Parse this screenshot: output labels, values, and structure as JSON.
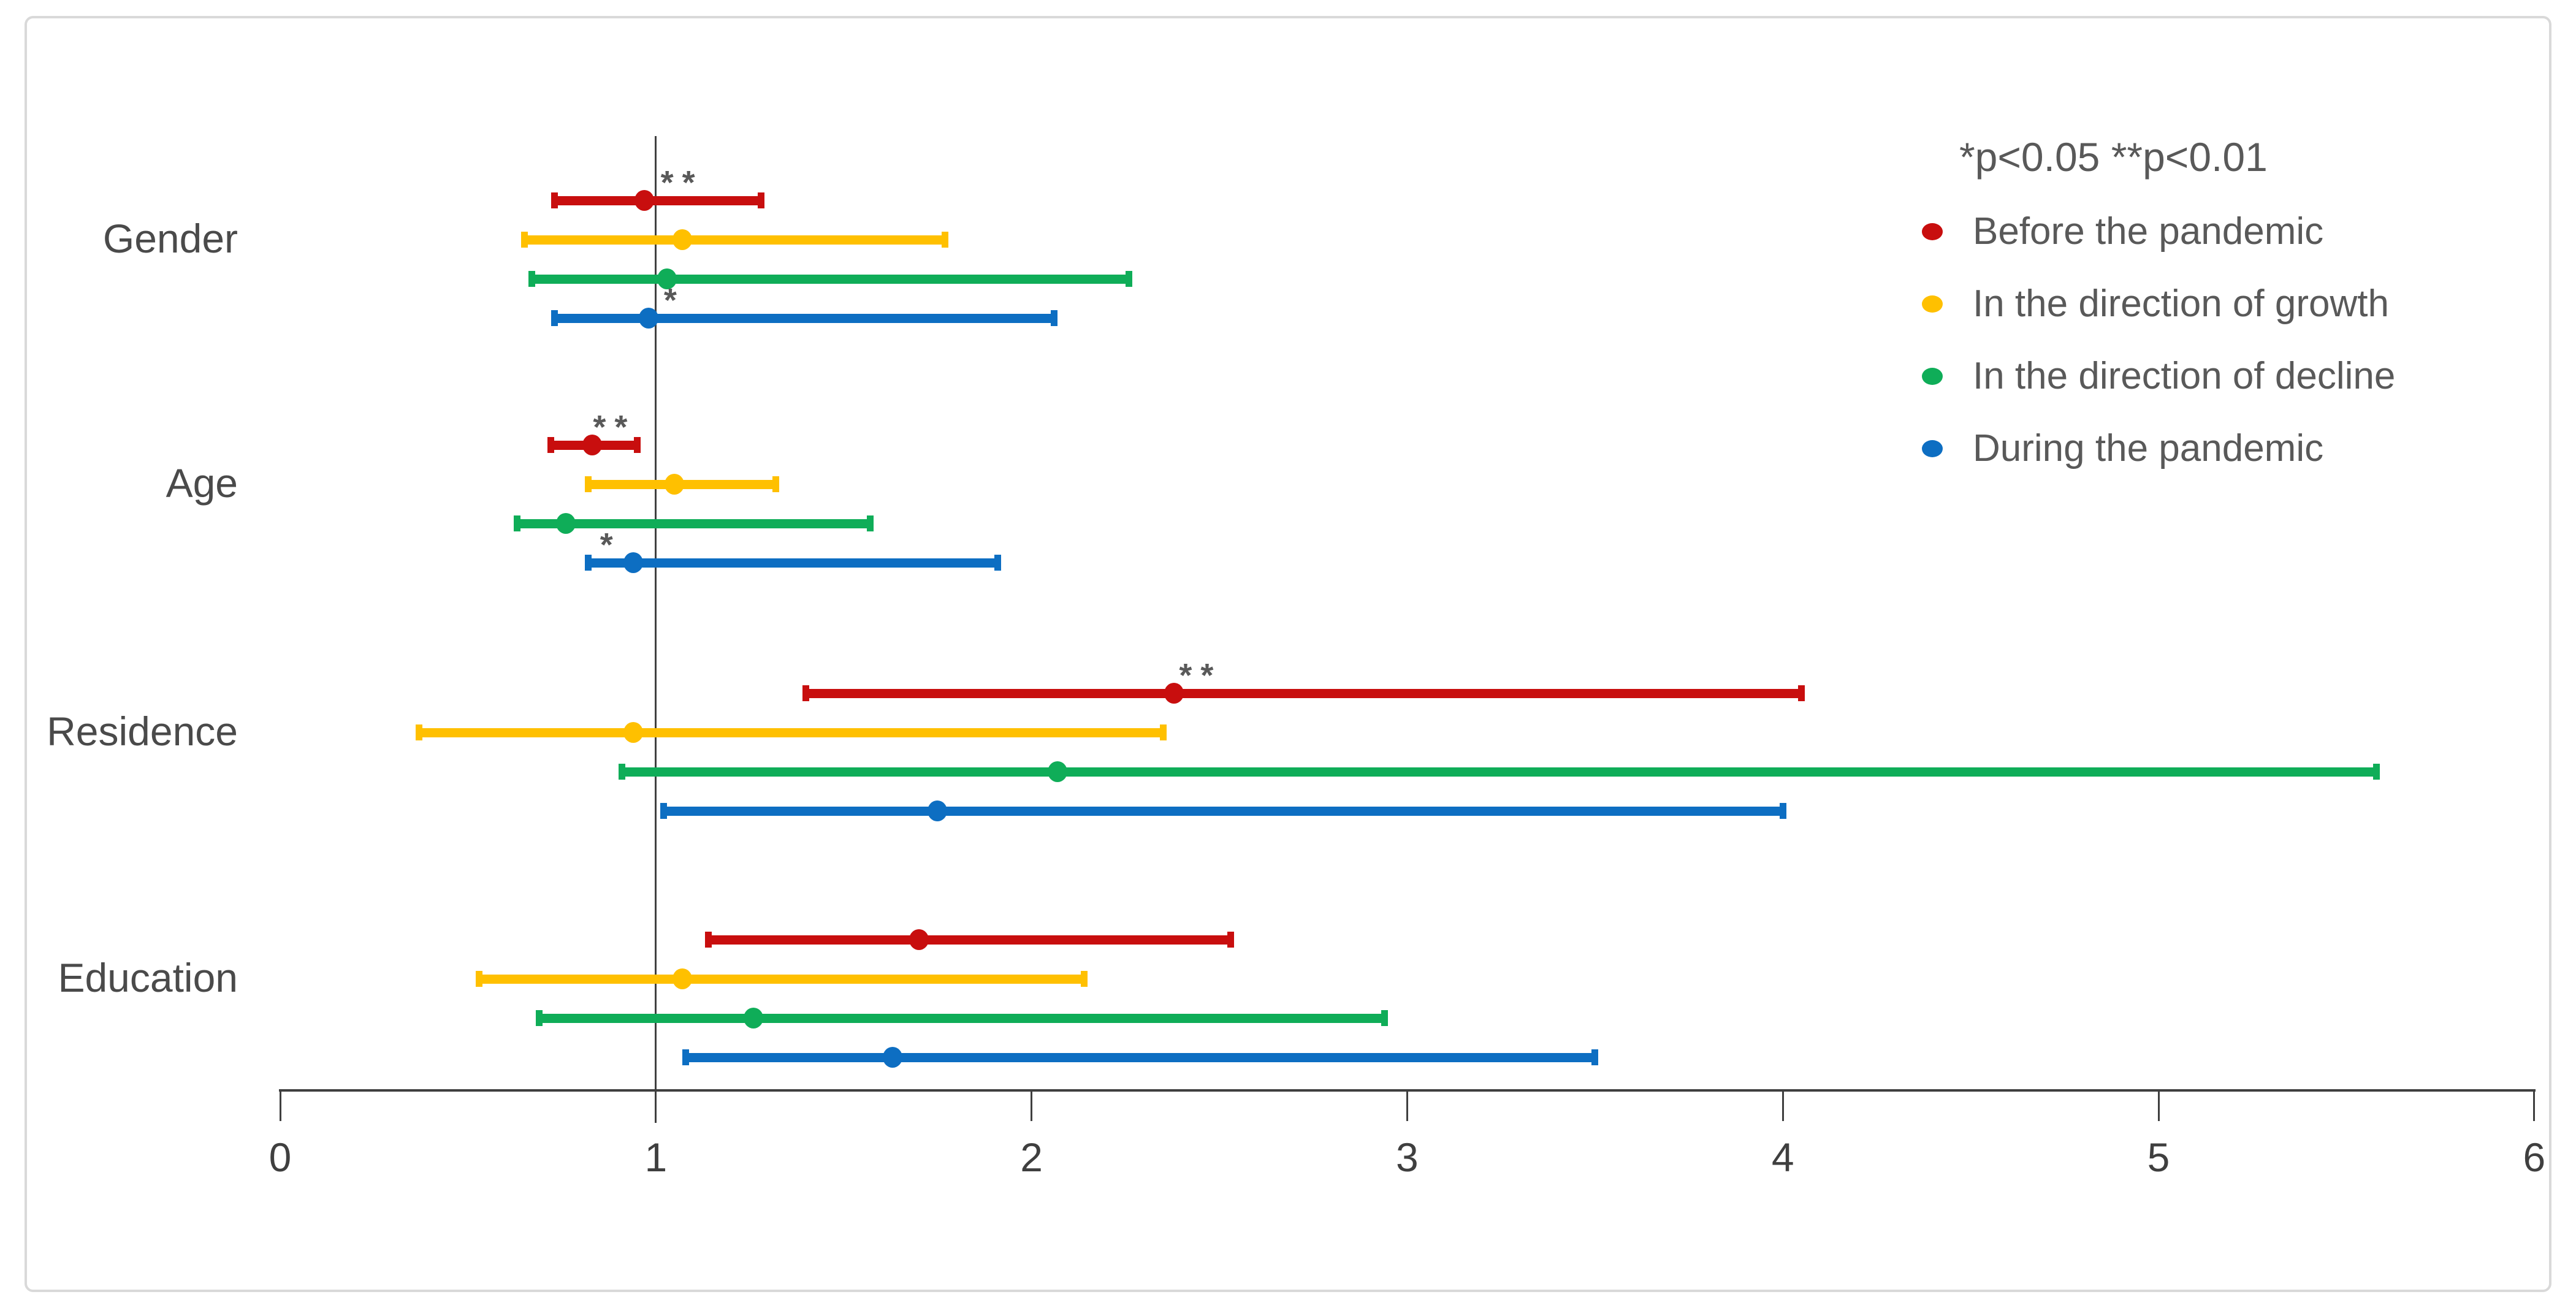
{
  "chart_data": {
    "type": "forest-errorbar",
    "title": "",
    "xlabel": "",
    "ylabel": "",
    "xlim": [
      0,
      6
    ],
    "x_ticks": [
      0,
      1,
      2,
      3,
      4,
      5,
      6
    ],
    "reference_line_x": 1,
    "grid": false,
    "legend": {
      "position": "top-right",
      "note": "*p<0.05  **p<0.01",
      "items": [
        {
          "label": "Before the pandemic",
          "color": "#C80E0E"
        },
        {
          "label": "In the direction of growth",
          "color": "#FFC000"
        },
        {
          "label": "In the direction of decline",
          "color": "#0FAD58"
        },
        {
          "label": "During the pandemic",
          "color": "#0D6EC2"
        }
      ]
    },
    "categories": [
      "Gender",
      "Age",
      "Residence",
      "Education"
    ],
    "groups": [
      {
        "category": "Gender",
        "rows": [
          {
            "series": "Before the pandemic",
            "ci_low": 0.73,
            "or": 0.97,
            "ci_high": 1.28,
            "sig": "**",
            "sig_x": 1.07
          },
          {
            "series": "In the direction of growth",
            "ci_low": 0.65,
            "or": 1.07,
            "ci_high": 1.77,
            "sig": "",
            "sig_x": null
          },
          {
            "series": "In the direction of decline",
            "ci_low": 0.67,
            "or": 1.03,
            "ci_high": 2.26,
            "sig": "",
            "sig_x": null
          },
          {
            "series": "During the pandemic",
            "ci_low": 0.73,
            "or": 0.98,
            "ci_high": 2.06,
            "sig": "*",
            "sig_x": 1.05
          }
        ]
      },
      {
        "category": "Age",
        "rows": [
          {
            "series": "Before the pandemic",
            "ci_low": 0.72,
            "or": 0.83,
            "ci_high": 0.95,
            "sig": "**",
            "sig_x": 0.89
          },
          {
            "series": "In the direction of growth",
            "ci_low": 0.82,
            "or": 1.05,
            "ci_high": 1.32,
            "sig": "",
            "sig_x": null
          },
          {
            "series": "In the direction of decline",
            "ci_low": 0.63,
            "or": 0.76,
            "ci_high": 1.57,
            "sig": "",
            "sig_x": null
          },
          {
            "series": "During the pandemic",
            "ci_low": 0.82,
            "or": 0.94,
            "ci_high": 1.91,
            "sig": "*",
            "sig_x": 0.88
          }
        ]
      },
      {
        "category": "Residence",
        "rows": [
          {
            "series": "Before the pandemic",
            "ci_low": 1.4,
            "or": 2.38,
            "ci_high": 4.05,
            "sig": "**",
            "sig_x": 2.45
          },
          {
            "series": "In the direction of growth",
            "ci_low": 0.37,
            "or": 0.94,
            "ci_high": 2.35,
            "sig": "",
            "sig_x": null
          },
          {
            "series": "In the direction of decline",
            "ci_low": 0.91,
            "or": 2.07,
            "ci_high": 5.58,
            "sig": "",
            "sig_x": null
          },
          {
            "series": "During the pandemic",
            "ci_low": 1.02,
            "or": 1.75,
            "ci_high": 4.0,
            "sig": "",
            "sig_x": null
          }
        ]
      },
      {
        "category": "Education",
        "rows": [
          {
            "series": "Before the pandemic",
            "ci_low": 1.14,
            "or": 1.7,
            "ci_high": 2.53,
            "sig": "",
            "sig_x": null
          },
          {
            "series": "In the direction of growth",
            "ci_low": 0.53,
            "or": 1.07,
            "ci_high": 2.14,
            "sig": "",
            "sig_x": null
          },
          {
            "series": "In the direction of decline",
            "ci_low": 0.69,
            "or": 1.26,
            "ci_high": 2.94,
            "sig": "",
            "sig_x": null
          },
          {
            "series": "During the pandemic",
            "ci_low": 1.08,
            "or": 1.63,
            "ci_high": 3.5,
            "sig": "",
            "sig_x": null
          }
        ]
      }
    ],
    "ui_colors": {
      "axis": "#3F3F3F",
      "reference_line": "#404040",
      "category_text": "#4A4A4A",
      "legend_text": "#595959",
      "significance_text": "#595959",
      "frame_border": "#D9D9D9",
      "background": "#FFFFFF"
    }
  }
}
